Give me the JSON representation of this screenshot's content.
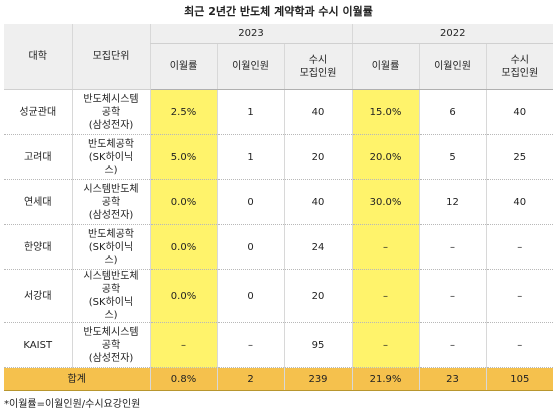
{
  "title": "최근 2년간 반도체 계약학과 수시 이월률",
  "header": {
    "univ": "대학",
    "dept": "모집단위",
    "year1": "2023",
    "year2": "2022",
    "col_rate": "이월률",
    "col_carry": "이월인원",
    "col_quota_l1": "수시",
    "col_quota_l2": "모집인원"
  },
  "rows": [
    {
      "univ": "성균관대",
      "dept": "반도체시스템\n공학\n(삼성전자)",
      "r23": "2.5%",
      "c23": "1",
      "q23": "40",
      "r22": "15.0%",
      "c22": "6",
      "q22": "40"
    },
    {
      "univ": "고려대",
      "dept": "반도체공학\n(SK하이닉\n스)",
      "r23": "5.0%",
      "c23": "1",
      "q23": "20",
      "r22": "20.0%",
      "c22": "5",
      "q22": "25"
    },
    {
      "univ": "연세대",
      "dept": "시스템반도체\n공학\n(삼성전자)",
      "r23": "0.0%",
      "c23": "0",
      "q23": "40",
      "r22": "30.0%",
      "c22": "12",
      "q22": "40"
    },
    {
      "univ": "한양대",
      "dept": "반도체공학\n(SK하이닉\n스)",
      "r23": "0.0%",
      "c23": "0",
      "q23": "24",
      "r22": "–",
      "c22": "–",
      "q22": "–"
    },
    {
      "univ": "서강대",
      "dept": "시스템반도체\n공학\n(SK하이닉\n스)",
      "r23": "0.0%",
      "c23": "0",
      "q23": "20",
      "r22": "–",
      "c22": "–",
      "q22": "–"
    },
    {
      "univ": "KAIST",
      "dept": "반도체시스템\n공학\n(삼성전자)",
      "r23": "–",
      "c23": "–",
      "q23": "95",
      "r22": "–",
      "c22": "–",
      "q22": "–"
    }
  ],
  "total": {
    "label": "합계",
    "r23": "0.8%",
    "c23": "2",
    "q23": "239",
    "r22": "21.9%",
    "c22": "23",
    "q22": "105"
  },
  "note": "*이월률=이월인원/수시요강인원",
  "colors": {
    "highlight": "#fff36b",
    "total": "#f5c14d",
    "header": "#efefef"
  }
}
